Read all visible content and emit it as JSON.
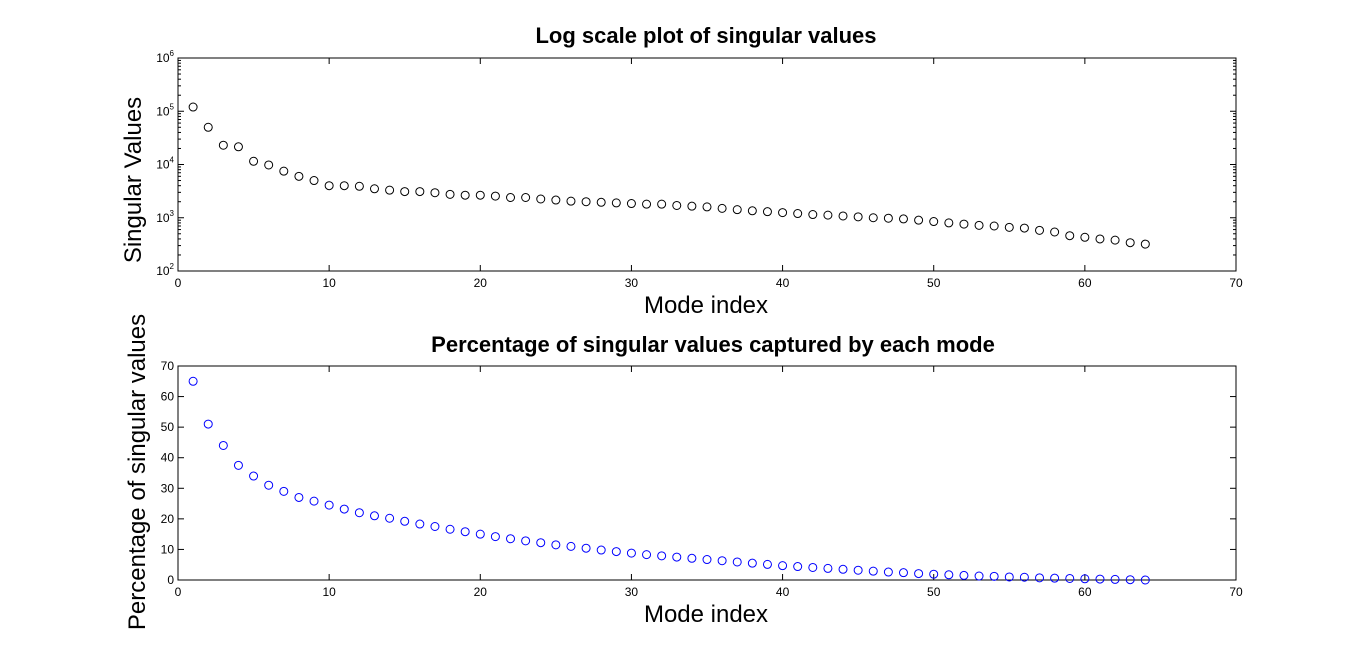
{
  "chart_data": [
    {
      "type": "scatter",
      "title": "Log scale plot of singular values",
      "xlabel": "Mode index",
      "ylabel": "Singular Values",
      "xlim": [
        0,
        70
      ],
      "ylim": [
        100,
        1000000
      ],
      "yscale": "log",
      "xticks": [
        "0",
        "10",
        "20",
        "30",
        "40",
        "50",
        "60",
        "70"
      ],
      "yticks": [
        {
          "base": "10",
          "exp": "2"
        },
        {
          "base": "10",
          "exp": "3"
        },
        {
          "base": "10",
          "exp": "4"
        },
        {
          "base": "10",
          "exp": "5"
        },
        {
          "base": "10",
          "exp": "6"
        }
      ],
      "marker_color": "#000000",
      "x": [
        1,
        2,
        3,
        4,
        5,
        6,
        7,
        8,
        9,
        10,
        11,
        12,
        13,
        14,
        15,
        16,
        17,
        18,
        19,
        20,
        21,
        22,
        23,
        24,
        25,
        26,
        27,
        28,
        29,
        30,
        31,
        32,
        33,
        34,
        35,
        36,
        37,
        38,
        39,
        40,
        41,
        42,
        43,
        44,
        45,
        46,
        47,
        48,
        49,
        50,
        51,
        52,
        53,
        54,
        55,
        56,
        57,
        58,
        59,
        60,
        61,
        62,
        63,
        64
      ],
      "y": [
        120000,
        50000,
        23000,
        21500,
        11500,
        9800,
        7500,
        6000,
        5000,
        4000,
        4000,
        3900,
        3500,
        3300,
        3100,
        3100,
        2950,
        2750,
        2650,
        2650,
        2550,
        2400,
        2400,
        2250,
        2150,
        2050,
        2000,
        1950,
        1900,
        1850,
        1800,
        1800,
        1700,
        1650,
        1600,
        1500,
        1420,
        1350,
        1300,
        1250,
        1200,
        1150,
        1120,
        1080,
        1040,
        1000,
        980,
        950,
        900,
        850,
        800,
        760,
        720,
        700,
        660,
        640,
        580,
        540,
        460,
        430,
        400,
        380,
        340,
        320
      ]
    },
    {
      "type": "scatter",
      "title": "Percentage of singular values captured by each mode",
      "xlabel": "Mode index",
      "ylabel": "Percentage of singular values",
      "xlim": [
        0,
        70
      ],
      "ylim": [
        0,
        70
      ],
      "xticks": [
        "0",
        "10",
        "20",
        "30",
        "40",
        "50",
        "60",
        "70"
      ],
      "yticks": [
        "0",
        "10",
        "20",
        "30",
        "40",
        "50",
        "60",
        "70"
      ],
      "marker_color": "#0000ff",
      "x": [
        1,
        2,
        3,
        4,
        5,
        6,
        7,
        8,
        9,
        10,
        11,
        12,
        13,
        14,
        15,
        16,
        17,
        18,
        19,
        20,
        21,
        22,
        23,
        24,
        25,
        26,
        27,
        28,
        29,
        30,
        31,
        32,
        33,
        34,
        35,
        36,
        37,
        38,
        39,
        40,
        41,
        42,
        43,
        44,
        45,
        46,
        47,
        48,
        49,
        50,
        51,
        52,
        53,
        54,
        55,
        56,
        57,
        58,
        59,
        60,
        61,
        62,
        63,
        64
      ],
      "y": [
        65,
        51,
        44,
        37.5,
        34,
        31,
        29,
        27,
        25.8,
        24.5,
        23.2,
        22,
        21,
        20.2,
        19.2,
        18.3,
        17.5,
        16.6,
        15.8,
        15,
        14.2,
        13.5,
        12.8,
        12.2,
        11.5,
        11,
        10.4,
        9.8,
        9.3,
        8.8,
        8.3,
        7.9,
        7.5,
        7.1,
        6.7,
        6.3,
        5.9,
        5.5,
        5.1,
        4.7,
        4.4,
        4.1,
        3.8,
        3.5,
        3.2,
        2.9,
        2.6,
        2.4,
        2.1,
        1.9,
        1.7,
        1.5,
        1.3,
        1.2,
        1,
        0.9,
        0.7,
        0.6,
        0.5,
        0.4,
        0.3,
        0.2,
        0.1,
        0
      ]
    }
  ]
}
